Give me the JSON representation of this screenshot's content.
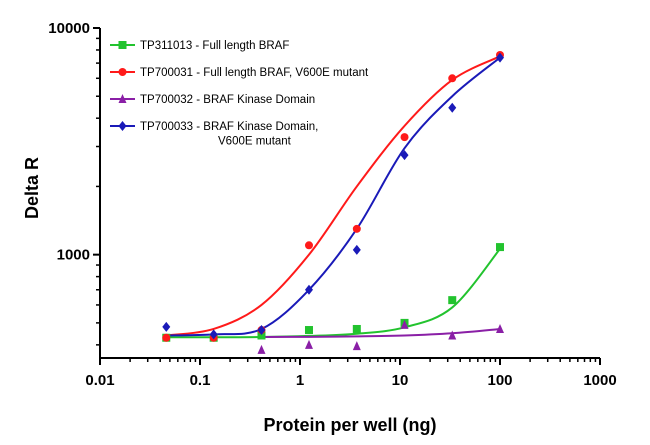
{
  "chart_data": {
    "type": "scatter",
    "xlabel": "Protein per well (ng)",
    "ylabel": "Delta R",
    "xscale": "log",
    "yscale": "log",
    "xlim": [
      0.01,
      1000
    ],
    "ylim": [
      350,
      10000
    ],
    "x_ticks": [
      0.01,
      0.1,
      1,
      10,
      100,
      1000
    ],
    "x_tick_labels": [
      "0.01",
      "0.1",
      "1",
      "10",
      "100",
      "1000"
    ],
    "y_ticks": [
      1000,
      10000
    ],
    "y_tick_labels": [
      "1000",
      "10000"
    ],
    "grid": false,
    "legend_position": "top-left",
    "series": [
      {
        "name": "TP311013 - Full length BRAF",
        "color": "#22c32e",
        "marker": "square",
        "x": [
          0.046,
          0.137,
          0.412,
          1.23,
          3.7,
          11.1,
          33.3,
          100
        ],
        "y": [
          430,
          430,
          440,
          465,
          470,
          500,
          630,
          1080
        ],
        "fit_y": [
          432,
          432,
          433,
          438,
          448,
          478,
          585,
          1060
        ]
      },
      {
        "name": "TP700031 - Full length BRAF, V600E mutant",
        "color": "#ff1a1a",
        "marker": "circle",
        "x": [
          0.046,
          0.137,
          0.412,
          1.23,
          3.7,
          11.1,
          33.3,
          100
        ],
        "y": [
          430,
          430,
          465,
          1100,
          1300,
          3300,
          6000,
          7600
        ],
        "fit_y": [
          440,
          470,
          600,
          1000,
          2000,
          3700,
          5900,
          7500
        ]
      },
      {
        "name": "TP700032 - BRAF Kinase Domain",
        "color": "#8a1fa6",
        "marker": "triangle",
        "x": [
          0.412,
          1.23,
          3.7,
          11.1,
          33.3,
          100
        ],
        "y": [
          380,
          400,
          395,
          490,
          440,
          470
        ],
        "fit_y": [
          433,
          434,
          436,
          440,
          450,
          470
        ]
      },
      {
        "name": "TP700033 - BRAF Kinase Domain,\nV600E mutant",
        "legend_lines": [
          "TP700033 - BRAF Kinase Domain,",
          "V600E mutant"
        ],
        "color": "#1a1ab8",
        "marker": "diamond",
        "x": [
          0.046,
          0.137,
          0.412,
          1.23,
          3.7,
          11.1,
          33.3,
          100
        ],
        "y": [
          480,
          445,
          465,
          700,
          1050,
          2750,
          4450,
          7400
        ],
        "fit_y": [
          440,
          445,
          470,
          700,
          1300,
          2950,
          5000,
          7400
        ]
      }
    ]
  }
}
